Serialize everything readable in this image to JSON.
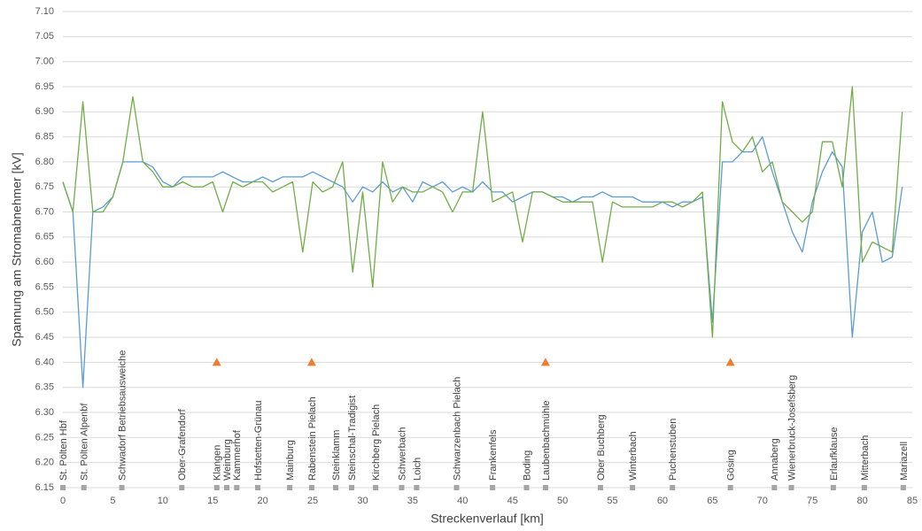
{
  "chart_data": {
    "type": "line",
    "y_label": "Spannung am Stromabnehmer [kV]",
    "x_label": "Streckenverlauf [km]",
    "x": [
      0,
      1,
      2,
      3,
      4,
      5,
      6,
      7,
      8,
      9,
      10,
      11,
      12,
      13,
      14,
      15,
      16,
      17,
      18,
      19,
      20,
      21,
      22,
      23,
      24,
      25,
      26,
      27,
      28,
      29,
      30,
      31,
      32,
      33,
      34,
      35,
      36,
      37,
      38,
      39,
      40,
      41,
      42,
      43,
      44,
      45,
      46,
      47,
      48,
      49,
      50,
      51,
      52,
      53,
      54,
      55,
      56,
      57,
      58,
      59,
      60,
      61,
      62,
      63,
      64,
      65,
      66,
      67,
      68,
      69,
      70,
      71,
      72,
      73,
      74,
      75,
      76,
      77,
      78,
      79,
      80,
      81,
      82,
      83,
      84
    ],
    "series": [
      {
        "color": "#5b9bd5",
        "values": [
          6.76,
          6.7,
          6.35,
          6.7,
          6.71,
          6.73,
          6.8,
          6.8,
          6.8,
          6.79,
          6.76,
          6.75,
          6.77,
          6.77,
          6.77,
          6.77,
          6.78,
          6.77,
          6.76,
          6.76,
          6.77,
          6.76,
          6.77,
          6.77,
          6.77,
          6.78,
          6.77,
          6.76,
          6.75,
          6.72,
          6.75,
          6.74,
          6.76,
          6.74,
          6.75,
          6.72,
          6.76,
          6.75,
          6.76,
          6.74,
          6.75,
          6.74,
          6.76,
          6.74,
          6.74,
          6.72,
          6.73,
          6.74,
          6.74,
          6.73,
          6.73,
          6.72,
          6.73,
          6.73,
          6.74,
          6.73,
          6.73,
          6.73,
          6.72,
          6.72,
          6.72,
          6.71,
          6.72,
          6.72,
          6.73,
          6.48,
          6.8,
          6.8,
          6.82,
          6.82,
          6.85,
          6.78,
          6.72,
          6.66,
          6.62,
          6.72,
          6.78,
          6.82,
          6.79,
          6.45,
          6.66,
          6.7,
          6.6,
          6.61,
          6.75
        ]
      },
      {
        "color": "#70ad47",
        "values": [
          6.76,
          6.7,
          6.92,
          6.7,
          6.7,
          6.73,
          6.8,
          6.93,
          6.8,
          6.78,
          6.75,
          6.75,
          6.76,
          6.75,
          6.75,
          6.76,
          6.7,
          6.76,
          6.75,
          6.76,
          6.76,
          6.74,
          6.75,
          6.76,
          6.62,
          6.76,
          6.74,
          6.75,
          6.8,
          6.58,
          6.74,
          6.55,
          6.8,
          6.72,
          6.75,
          6.74,
          6.74,
          6.75,
          6.74,
          6.7,
          6.74,
          6.74,
          6.9,
          6.72,
          6.73,
          6.74,
          6.64,
          6.74,
          6.74,
          6.73,
          6.72,
          6.72,
          6.72,
          6.72,
          6.6,
          6.72,
          6.71,
          6.71,
          6.71,
          6.71,
          6.72,
          6.72,
          6.71,
          6.72,
          6.74,
          6.45,
          6.92,
          6.84,
          6.82,
          6.85,
          6.78,
          6.8,
          6.72,
          6.7,
          6.68,
          6.7,
          6.84,
          6.84,
          6.75,
          6.95,
          6.6,
          6.64,
          6.63,
          6.62,
          6.9
        ]
      }
    ],
    "xlim": [
      0,
      85
    ],
    "xticks": [
      0,
      5,
      10,
      15,
      20,
      25,
      30,
      35,
      40,
      45,
      50,
      55,
      60,
      65,
      70,
      75,
      80,
      85
    ],
    "ylim": [
      6.15,
      7.1
    ],
    "yticks": [
      {
        "value": 6.15,
        "label": "6.15"
      },
      {
        "value": 6.2,
        "label": "6.20"
      },
      {
        "value": 6.25,
        "label": "6.25"
      },
      {
        "value": 6.3,
        "label": "6.30"
      },
      {
        "value": 6.35,
        "label": "6.35"
      },
      {
        "value": 6.4,
        "label": "6.40"
      },
      {
        "value": 6.45,
        "label": "6.45"
      },
      {
        "value": 6.5,
        "label": "6.50"
      },
      {
        "value": 6.55,
        "label": "6.55"
      },
      {
        "value": 6.6,
        "label": "6.60"
      },
      {
        "value": 6.65,
        "label": "6.65"
      },
      {
        "value": 6.7,
        "label": "6.70"
      },
      {
        "value": 6.75,
        "label": "6.75"
      },
      {
        "value": 6.8,
        "label": "6.80"
      },
      {
        "value": 6.85,
        "label": "6.85"
      },
      {
        "value": 6.9,
        "label": "6.90"
      },
      {
        "value": 6.95,
        "label": "6.95"
      },
      {
        "value": 7.0,
        "label": "7.00"
      },
      {
        "value": 7.05,
        "label": "7.05"
      },
      {
        "value": 7.1,
        "label": "7.10"
      }
    ],
    "grid": true,
    "stations": [
      {
        "name": "St. Pölten Hbf",
        "km": 0
      },
      {
        "name": "St. Pölten Alpenbf",
        "km": 2.1
      },
      {
        "name": "Schwadorf Betriebsausweiche",
        "km": 5.9
      },
      {
        "name": "Ober-Grafendorf",
        "km": 11.9
      },
      {
        "name": "Klangen",
        "km": 15.4
      },
      {
        "name": "Weinburg",
        "km": 16.4
      },
      {
        "name": "Kammerhof",
        "km": 17.4
      },
      {
        "name": "Hofstetten-Grünau",
        "km": 19.5
      },
      {
        "name": "Mainburg",
        "km": 22.7
      },
      {
        "name": "Rabenstein Pielach",
        "km": 24.9
      },
      {
        "name": "Steinklamm",
        "km": 27.3
      },
      {
        "name": "Steinschal-Tradigist",
        "km": 28.9
      },
      {
        "name": "Kirchberg Pielach",
        "km": 31.3
      },
      {
        "name": "Schwerbach",
        "km": 33.9
      },
      {
        "name": "Loich",
        "km": 35.4
      },
      {
        "name": "Schwarzenbach Pielach",
        "km": 39.4
      },
      {
        "name": "Frankenfels",
        "km": 43.0
      },
      {
        "name": "Boding",
        "km": 46.4
      },
      {
        "name": "Laubenbachmühle",
        "km": 48.3
      },
      {
        "name": "Ober Buchberg",
        "km": 53.8
      },
      {
        "name": "Winterbach",
        "km": 57.0
      },
      {
        "name": "Puchenstuben",
        "km": 61.0
      },
      {
        "name": "Gösing",
        "km": 66.8
      },
      {
        "name": "Annaberg",
        "km": 71.2
      },
      {
        "name": "Wienerbruck-Josefsberg",
        "km": 72.9
      },
      {
        "name": "Erlaufklause",
        "km": 77.1
      },
      {
        "name": "Mitterbach",
        "km": 80.2
      },
      {
        "name": "Mariazell",
        "km": 84.1
      }
    ],
    "station_color": "#a5a5a5",
    "markers": {
      "color": "#ed7d31",
      "value": 6.4,
      "km": [
        15.4,
        24.9,
        48.3,
        66.8
      ]
    }
  }
}
